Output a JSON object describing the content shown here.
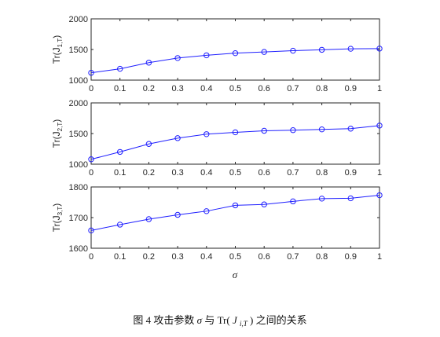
{
  "chart_data": [
    {
      "type": "line",
      "ylabel": "Tr(J",
      "ylabel_sub": "1,T",
      "ylabel_close": ")",
      "x": [
        0,
        0.1,
        0.2,
        0.3,
        0.4,
        0.5,
        0.6,
        0.7,
        0.8,
        0.9,
        1
      ],
      "series": [
        {
          "values": [
            1120,
            1185,
            1285,
            1360,
            1405,
            1440,
            1460,
            1480,
            1495,
            1512,
            1515
          ],
          "color": "#1f1fff"
        }
      ],
      "xlim": [
        0,
        1
      ],
      "ylim": [
        1000,
        2000
      ],
      "xticks": [
        "0",
        "0.1",
        "0.2",
        "0.3",
        "0.4",
        "0.5",
        "0.6",
        "0.7",
        "0.8",
        "0.9",
        "1"
      ],
      "yticks": [
        "1000",
        "1500",
        "2000"
      ],
      "ytick_values": [
        1000,
        1500,
        2000
      ],
      "grid": false
    },
    {
      "type": "line",
      "ylabel": "Tr(J",
      "ylabel_sub": "2,T",
      "ylabel_close": ")",
      "x": [
        0,
        0.1,
        0.2,
        0.3,
        0.4,
        0.5,
        0.6,
        0.7,
        0.8,
        0.9,
        1
      ],
      "series": [
        {
          "values": [
            1080,
            1200,
            1330,
            1425,
            1490,
            1520,
            1545,
            1555,
            1568,
            1580,
            1630
          ],
          "color": "#1f1fff"
        }
      ],
      "xlim": [
        0,
        1
      ],
      "ylim": [
        1000,
        2000
      ],
      "xticks": [
        "0",
        "0.1",
        "0.2",
        "0.3",
        "0.4",
        "0.5",
        "0.6",
        "0.7",
        "0.8",
        "0.9",
        "1"
      ],
      "yticks": [
        "1000",
        "1500",
        "2000"
      ],
      "ytick_values": [
        1000,
        1500,
        2000
      ],
      "grid": false
    },
    {
      "type": "line",
      "ylabel": "Tr(J",
      "ylabel_sub": "3,T",
      "ylabel_close": ")",
      "x": [
        0,
        0.1,
        0.2,
        0.3,
        0.4,
        0.5,
        0.6,
        0.7,
        0.8,
        0.9,
        1
      ],
      "series": [
        {
          "values": [
            1658,
            1677,
            1695,
            1709,
            1721,
            1740,
            1743,
            1753,
            1762,
            1763,
            1773
          ],
          "color": "#1f1fff"
        }
      ],
      "xlim": [
        0,
        1
      ],
      "ylim": [
        1600,
        1800
      ],
      "xticks": [
        "0",
        "0.1",
        "0.2",
        "0.3",
        "0.4",
        "0.5",
        "0.6",
        "0.7",
        "0.8",
        "0.9",
        "1"
      ],
      "yticks": [
        "1600",
        "1700",
        "1800"
      ],
      "ytick_values": [
        1600,
        1700,
        1800
      ],
      "grid": false,
      "xlabel": "σ"
    }
  ],
  "caption": {
    "prefix": "图 4  攻击参数",
    "sigma": "σ",
    "middle": "与 Tr(",
    "J": "J",
    "sub": "i,T",
    "suffix": ") 之间的关系"
  }
}
